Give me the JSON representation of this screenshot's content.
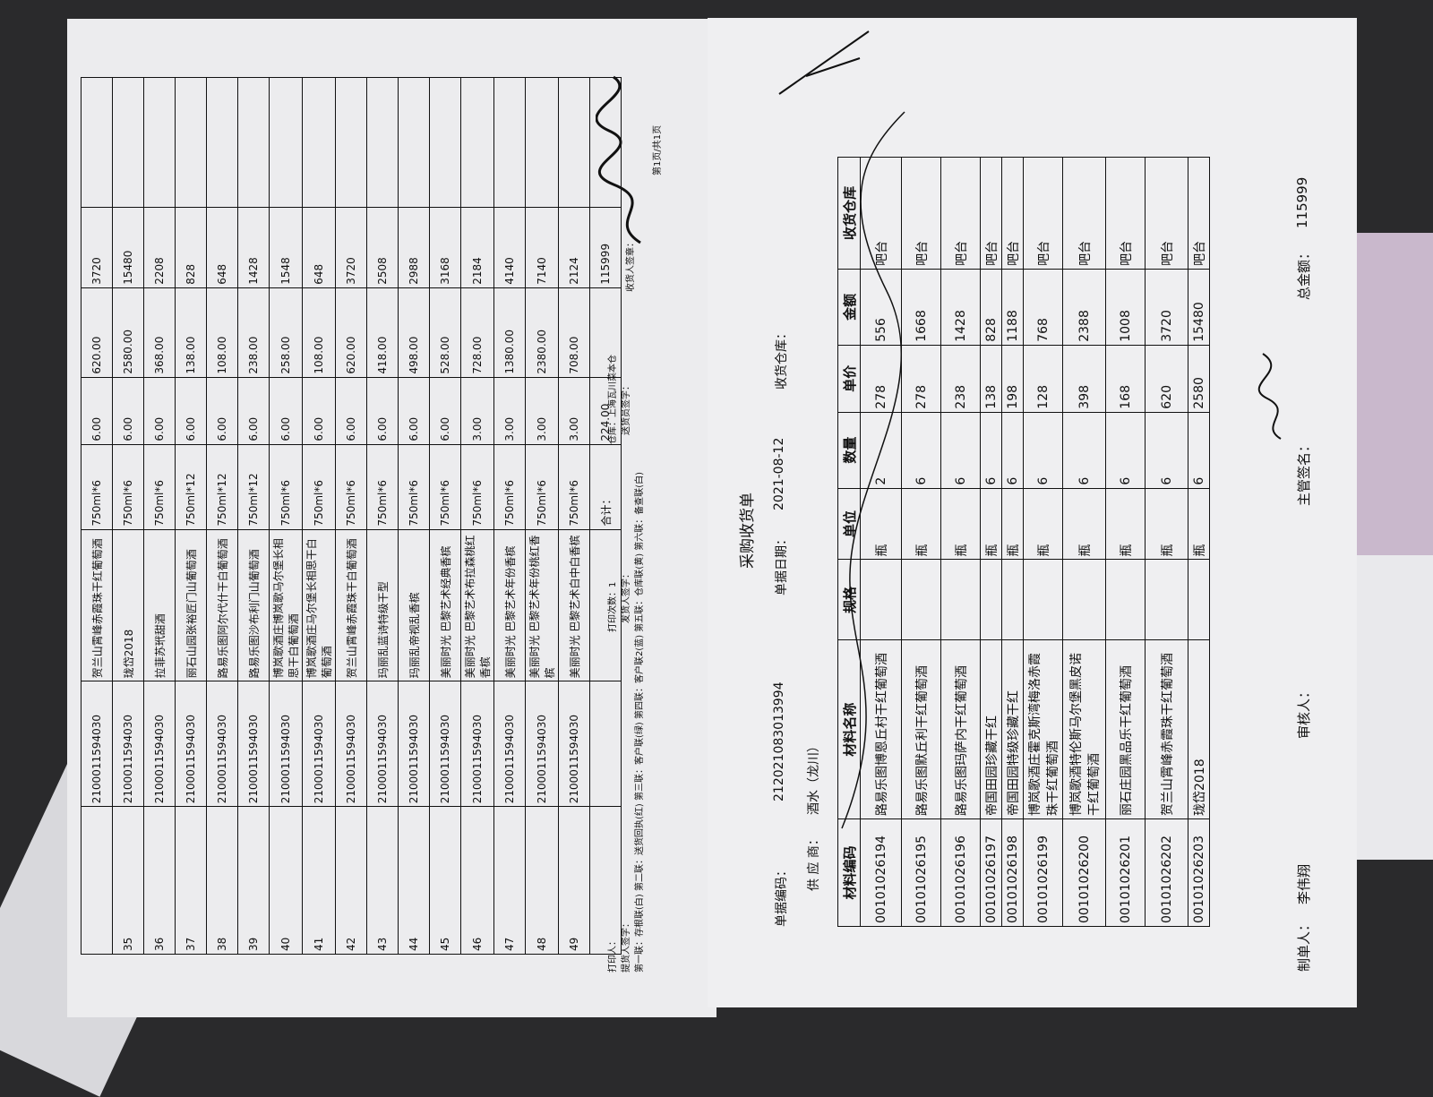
{
  "receipt": {
    "title": "采购收货单",
    "doc_no_label": "单据编码：",
    "doc_no": "212021083013994",
    "date_label": "单据日期：",
    "date": "2021-08-12",
    "warehouse_label": "收货仓库：",
    "supplier_label": "供 应 商：",
    "supplier": "酒水（龙川）",
    "columns": [
      "材料编码",
      "材料名称",
      "规格",
      "单位",
      "数量",
      "单价",
      "金额",
      "收货仓库"
    ],
    "rows": [
      [
        "00101026194",
        "路易乐图博恩丘村干红葡萄酒",
        "",
        "瓶",
        "2",
        "278",
        "556",
        "吧台"
      ],
      [
        "00101026195",
        "路易乐图默丘利干红葡萄酒",
        "",
        "瓶",
        "6",
        "278",
        "1668",
        "吧台"
      ],
      [
        "00101026196",
        "路易乐图玛萨内干红葡萄酒",
        "",
        "瓶",
        "6",
        "238",
        "1428",
        "吧台"
      ],
      [
        "00101026197",
        "帝国田园珍藏干红",
        "",
        "瓶",
        "6",
        "138",
        "828",
        "吧台"
      ],
      [
        "00101026198",
        "帝国田园特级珍藏干红",
        "",
        "瓶",
        "6",
        "198",
        "1188",
        "吧台"
      ],
      [
        "00101026199",
        "博岚歌酒庄霍克斯湾梅洛赤霞珠干红葡萄酒",
        "",
        "瓶",
        "6",
        "128",
        "768",
        "吧台"
      ],
      [
        "00101026200",
        "博岚歌酒特伦斯马尔堡黑皮诺干红葡萄酒",
        "",
        "瓶",
        "6",
        "398",
        "2388",
        "吧台"
      ],
      [
        "00101026201",
        "丽石庄园黑品乐干红葡萄酒",
        "",
        "瓶",
        "6",
        "168",
        "1008",
        "吧台"
      ],
      [
        "00101026202",
        "贺兰山霄峰赤霞珠干红葡萄酒",
        "",
        "瓶",
        "6",
        "620",
        "3720",
        "吧台"
      ],
      [
        "00101026203",
        "珑岱2018",
        "",
        "瓶",
        "6",
        "2580",
        "15480",
        "吧台"
      ]
    ],
    "maker_label": "制单人：",
    "maker": "李伟翔",
    "reviewer_label": "审核人：",
    "supervisor_label": "主管签名：",
    "total_label": "总金额：",
    "total": "115999"
  },
  "delivery": {
    "rows": [
      [
        "",
        "2100011594030",
        "贺兰山霄峰赤霞珠干红葡萄酒",
        "750ml*6",
        "6.00",
        "620.00",
        "3720"
      ],
      [
        "35",
        "2100011594030",
        "珑岱2018",
        "750ml*6",
        "6.00",
        "2580.00",
        "15480"
      ],
      [
        "36",
        "2100011594030",
        "拉菲苏玳甜酒",
        "750ml*6",
        "6.00",
        "368.00",
        "2208"
      ],
      [
        "37",
        "2100011594030",
        "丽石山园张裕匠门山葡萄酒",
        "750ml*12",
        "6.00",
        "138.00",
        "828"
      ],
      [
        "38",
        "2100011594030",
        "路易乐图阿尔代什干白葡萄酒",
        "750ml*12",
        "6.00",
        "108.00",
        "648"
      ],
      [
        "39",
        "2100011594030",
        "路易乐图沙布利门山葡萄酒",
        "750ml*12",
        "6.00",
        "238.00",
        "1428"
      ],
      [
        "40",
        "2100011594030",
        "博岚歌酒庄博岚歌马尔堡长相思干白葡萄酒",
        "750ml*6",
        "6.00",
        "258.00",
        "1548"
      ],
      [
        "41",
        "2100011594030",
        "博岚歌酒庄马尔堡长相思干白葡萄酒",
        "750ml*6",
        "6.00",
        "108.00",
        "648"
      ],
      [
        "42",
        "2100011594030",
        "贺兰山霄峰赤霞珠干白葡萄酒",
        "750ml*6",
        "6.00",
        "620.00",
        "3720"
      ],
      [
        "43",
        "2100011594030",
        "玛丽乱蓝诗特级干型",
        "750ml*6",
        "6.00",
        "418.00",
        "2508"
      ],
      [
        "44",
        "2100011594030",
        "玛丽乱帝视乱香槟",
        "750ml*6",
        "6.00",
        "498.00",
        "2988"
      ],
      [
        "45",
        "2100011594030",
        "美丽时光 巴黎艺术经典香槟",
        "750ml*6",
        "6.00",
        "528.00",
        "3168"
      ],
      [
        "46",
        "2100011594030",
        "美丽时光 巴黎艺术布拉森桃红香槟",
        "750ml*6",
        "3.00",
        "728.00",
        "2184"
      ],
      [
        "47",
        "2100011594030",
        "美丽时光 巴黎艺术年份香槟",
        "750ml*6",
        "3.00",
        "1380.00",
        "4140"
      ],
      [
        "48",
        "2100011594030",
        "美丽时光 巴黎艺术年份桃红香槟",
        "750ml*6",
        "3.00",
        "2380.00",
        "7140"
      ],
      [
        "49",
        "2100011594030",
        "美丽时光 巴黎艺术白中白香槟",
        "750ml*6",
        "3.00",
        "708.00",
        "2124"
      ]
    ],
    "total_label": "合计：",
    "total_qty": "224.00",
    "total_amount": "115999",
    "printer_label": "打印人：",
    "pickup_sign_label": "提货人签字：",
    "print_count_label": "打印次数：1",
    "shipper_sign_label": "发货人签字：",
    "warehouse_label": "仓库：上海瓦川菜本仓",
    "courier_sign_label": "送货员签字：",
    "receiver_stamp_label": "收货人签章：",
    "page_label": "第1页/共1页",
    "copies_note": "第一联：存根联(白) 第二联：送货回执(红) 第三联：客户联(绿) 第四联：客户联2(蓝) 第五联：仓库联(黄) 第六联：备查联(白)"
  }
}
